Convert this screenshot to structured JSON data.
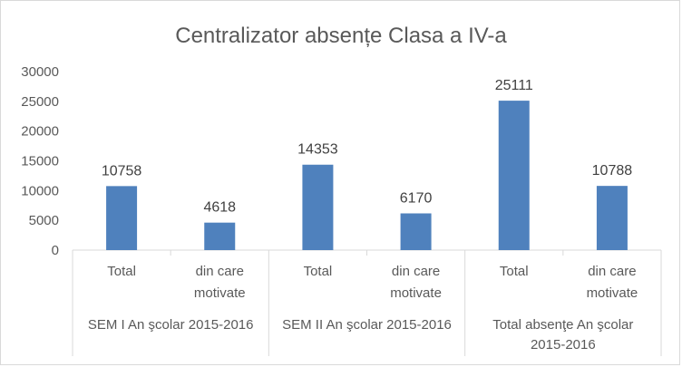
{
  "chart_data": {
    "type": "bar",
    "title": "Centralizator absențe Clasa a IV-a",
    "xlabel": "",
    "ylabel": "",
    "ylim": [
      0,
      30000
    ],
    "yticks": [
      0,
      5000,
      10000,
      15000,
      20000,
      25000,
      30000
    ],
    "grid": false,
    "bar_color": "#4F81BD",
    "groups": [
      {
        "label": "SEM I An şcolar 2015-2016",
        "categories": [
          {
            "label_lines": [
              "Total"
            ],
            "value": 10758
          },
          {
            "label_lines": [
              "din care",
              "motivate"
            ],
            "value": 4618
          }
        ]
      },
      {
        "label": "SEM II An şcolar 2015-2016",
        "categories": [
          {
            "label_lines": [
              "Total"
            ],
            "value": 14353
          },
          {
            "label_lines": [
              "din care",
              "motivate"
            ],
            "value": 6170
          }
        ]
      },
      {
        "label_lines": [
          "Total absenţe An şcolar",
          "2015-2016"
        ],
        "categories": [
          {
            "label_lines": [
              "Total"
            ],
            "value": 25111
          },
          {
            "label_lines": [
              "din care",
              "motivate"
            ],
            "value": 10788
          }
        ]
      }
    ]
  }
}
